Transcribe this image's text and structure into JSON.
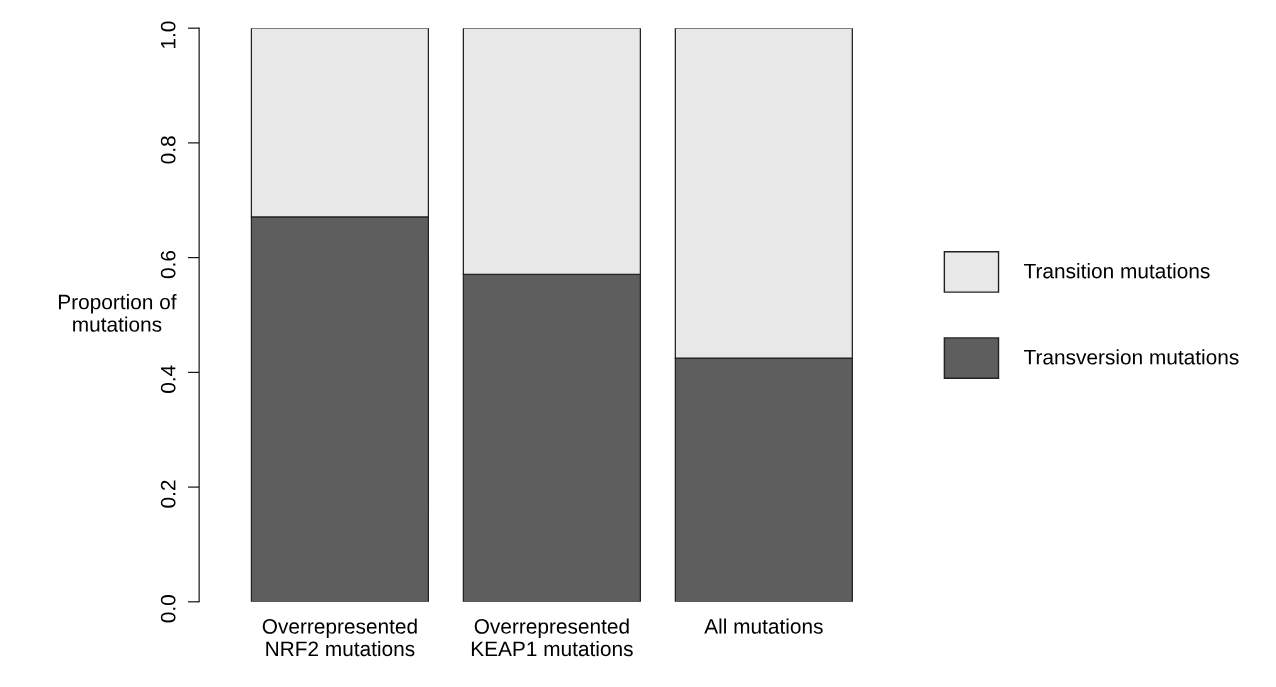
{
  "chart_data": {
    "type": "bar",
    "stacked": true,
    "ylabel": "Proportion of\nmutations",
    "categories": [
      "Overrepresented\nNRF2 mutations",
      "Overrepresented\nKEAP1 mutations",
      "All mutations"
    ],
    "series": [
      {
        "name": "Transversion mutations",
        "color": "#5e5e5e",
        "values": [
          0.671,
          0.571,
          0.425
        ]
      },
      {
        "name": "Transition mutations",
        "color": "#e8e8e8",
        "values": [
          0.329,
          0.429,
          0.575
        ]
      }
    ],
    "ylim": [
      0,
      1
    ],
    "yticks": [
      {
        "value": 0,
        "label": "0.0"
      },
      0.2,
      0.4,
      0.6,
      0.8,
      {
        "value": 1,
        "label": "1.0"
      }
    ],
    "grid": false,
    "legend": "right"
  }
}
